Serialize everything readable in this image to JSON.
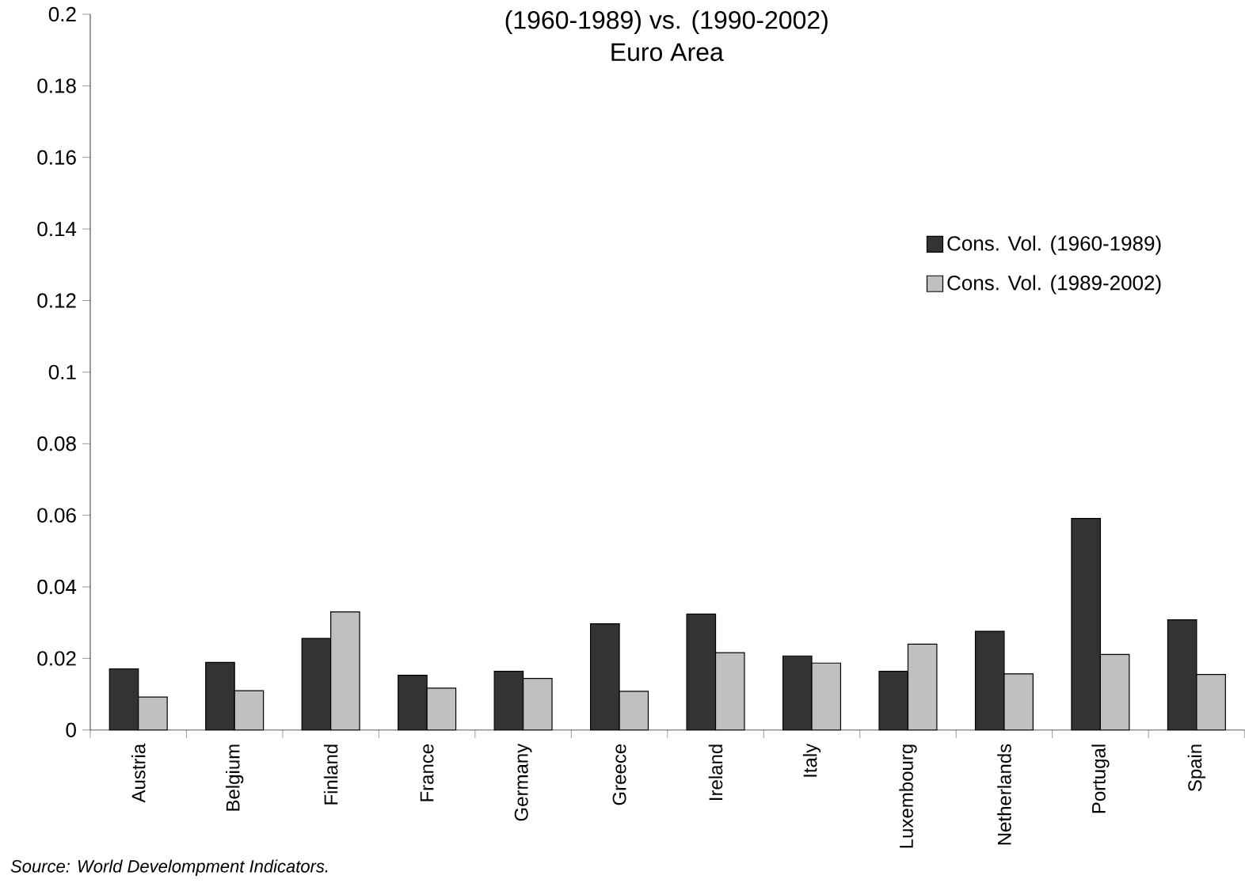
{
  "chart_data": {
    "type": "bar",
    "title": "(1960-1989) vs. (1990-2002)",
    "subtitle": "Euro Area",
    "categories": [
      "Austria",
      "Belgium",
      "Finland",
      "France",
      "Germany",
      "Greece",
      "Ireland",
      "Italy",
      "Luxembourg",
      "Netherlands",
      "Portugal",
      "Spain"
    ],
    "series": [
      {
        "name": "Cons. Vol. (1960-1989)",
        "color": "#333333",
        "values": [
          0.0171,
          0.0189,
          0.0256,
          0.0153,
          0.0164,
          0.0297,
          0.0324,
          0.0207,
          0.0164,
          0.0276,
          0.0591,
          0.0308
        ]
      },
      {
        "name": "Cons. Vol. (1989-2002)",
        "color": "#c0c0c0",
        "values": [
          0.0092,
          0.011,
          0.033,
          0.0117,
          0.0144,
          0.0108,
          0.0216,
          0.0187,
          0.024,
          0.0157,
          0.0211,
          0.0155
        ]
      }
    ],
    "ylim": [
      0,
      0.2
    ],
    "yticks": [
      0,
      0.02,
      0.04,
      0.06,
      0.08,
      0.1,
      0.12,
      0.14,
      0.16,
      0.18,
      0.2
    ],
    "legend": "top right",
    "grid": false,
    "annotations": [
      "Source: World Develompment Indicators."
    ]
  }
}
